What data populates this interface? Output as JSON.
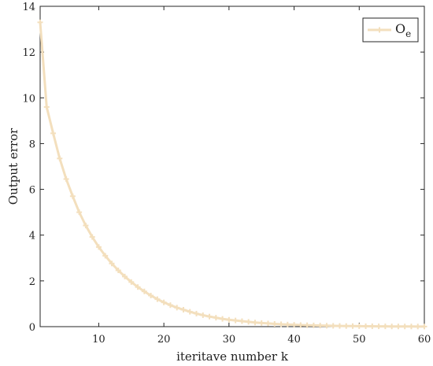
{
  "chart_data": {
    "type": "line",
    "title": "",
    "xlabel": "iteritave number k",
    "ylabel": "Output error",
    "xlim": [
      1,
      60
    ],
    "ylim": [
      0,
      14
    ],
    "xticks": [
      10,
      20,
      30,
      40,
      50,
      60
    ],
    "yticks": [
      0,
      2,
      4,
      6,
      8,
      10,
      12,
      14
    ],
    "grid": false,
    "legend_position": "top-right",
    "series": [
      {
        "name": "O",
        "name_subscript": "e",
        "color": "#f3dfbd",
        "marker": "plus",
        "x": [
          1,
          2,
          3,
          4,
          5,
          6,
          7,
          8,
          9,
          10,
          11,
          12,
          13,
          14,
          15,
          16,
          17,
          18,
          19,
          20,
          21,
          22,
          23,
          24,
          25,
          26,
          27,
          28,
          29,
          30,
          31,
          32,
          33,
          34,
          35,
          36,
          37,
          38,
          39,
          40,
          41,
          42,
          43,
          44,
          45,
          46,
          47,
          48,
          49,
          50,
          51,
          52,
          53,
          54,
          55,
          56,
          57,
          58,
          59,
          60
        ],
        "values": [
          13.3,
          9.6,
          8.45,
          7.35,
          6.45,
          5.7,
          5.0,
          4.42,
          3.92,
          3.48,
          3.1,
          2.76,
          2.46,
          2.19,
          1.95,
          1.73,
          1.54,
          1.36,
          1.2,
          1.06,
          0.94,
          0.83,
          0.74,
          0.65,
          0.57,
          0.5,
          0.44,
          0.39,
          0.34,
          0.3,
          0.27,
          0.24,
          0.21,
          0.18,
          0.16,
          0.14,
          0.12,
          0.105,
          0.092,
          0.08,
          0.07,
          0.062,
          0.054,
          0.047,
          0.041,
          0.036,
          0.031,
          0.027,
          0.024,
          0.021,
          0.018,
          0.016,
          0.014,
          0.012,
          0.01,
          0.009,
          0.008,
          0.007,
          0.006,
          0.005
        ]
      }
    ]
  }
}
